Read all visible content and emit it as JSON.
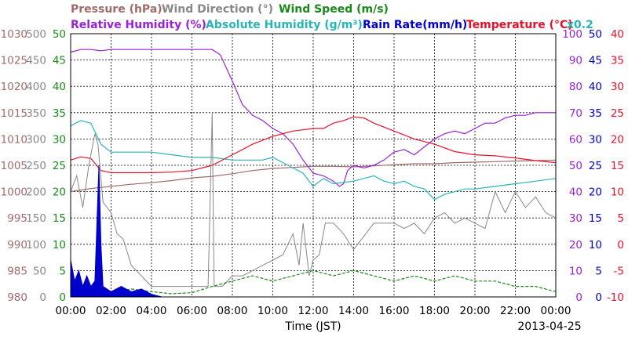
{
  "chart_data": {
    "type": "line",
    "date_label": "2013-04-25",
    "xlabel": "Time (JST)",
    "x_ticks": [
      "00:00",
      "02:00",
      "04:00",
      "06:00",
      "08:00",
      "10:00",
      "12:00",
      "14:00",
      "16:00",
      "18:00",
      "20:00",
      "22:00",
      "00:00"
    ],
    "x_range_hours": [
      0,
      24
    ],
    "grid": true,
    "multiplier_note": "x0.2",
    "legend": [
      {
        "key": "pressure",
        "text": "Pressure (hPa)",
        "color": "#a06b6b"
      },
      {
        "key": "wind_dir",
        "text": "Wind Direction (°)",
        "color": "#888888"
      },
      {
        "key": "wind_speed",
        "text": "Wind Speed (m/s)",
        "color": "#1a8a1a"
      },
      {
        "key": "rh",
        "text": "Relative Humidity (%)",
        "color": "#9a22d6"
      },
      {
        "key": "abs_h",
        "text": "Absolute Humidity (g/m³)",
        "color": "#2ab5b5"
      },
      {
        "key": "rain",
        "text": "Rain Rate(mm/h)",
        "color": "#0000cc"
      },
      {
        "key": "temp",
        "text": "Temperature (°C)",
        "color": "#e8102a"
      }
    ],
    "axes": {
      "pressure": {
        "ticks": [
          "980",
          "985",
          "990",
          "995",
          "1000",
          "1005",
          "1010",
          "1015",
          "1020",
          "1025",
          "1030"
        ],
        "range": [
          980,
          1030
        ],
        "color": "#a06b6b"
      },
      "wind_dir": {
        "ticks": [
          "0",
          "50",
          "100",
          "150",
          "200",
          "250",
          "300",
          "350",
          "400",
          "450",
          "500"
        ],
        "range": [
          0,
          500
        ],
        "color": "#888888"
      },
      "wind_speed": {
        "ticks": [
          "0",
          "5",
          "10",
          "15",
          "20",
          "25",
          "30",
          "35",
          "40",
          "45",
          "50"
        ],
        "range": [
          0,
          50
        ],
        "color": "#1a8a1a"
      },
      "rh": {
        "ticks": [
          "0",
          "10",
          "20",
          "30",
          "40",
          "50",
          "60",
          "70",
          "80",
          "90",
          "100"
        ],
        "range": [
          0,
          100
        ],
        "color": "#9a22d6"
      },
      "rain": {
        "ticks": [
          "0",
          "5",
          "10",
          "15",
          "20",
          "25",
          "30",
          "35",
          "40",
          "45",
          "50"
        ],
        "range": [
          0,
          50
        ],
        "color": "#0000cc"
      },
      "temp": {
        "ticks": [
          "-10",
          "-5",
          "0",
          "5",
          "10",
          "15",
          "20",
          "25",
          "30",
          "35",
          "40"
        ],
        "range": [
          -10,
          40
        ],
        "color": "#e8102a"
      }
    },
    "series": [
      {
        "name": "Pressure (hPa)",
        "key": "pressure",
        "points": [
          [
            0,
            1000
          ],
          [
            1,
            1000.6
          ],
          [
            2,
            1001
          ],
          [
            3,
            1001.4
          ],
          [
            4,
            1001.7
          ],
          [
            5,
            1002.1
          ],
          [
            6,
            1002.6
          ],
          [
            7,
            1002.9
          ],
          [
            8,
            1003.4
          ],
          [
            9,
            1004
          ],
          [
            10,
            1004.4
          ],
          [
            11,
            1004.6
          ],
          [
            12,
            1004.8
          ],
          [
            13,
            1004.8
          ],
          [
            14,
            1004.7
          ],
          [
            15,
            1004.9
          ],
          [
            16,
            1005.1
          ],
          [
            17,
            1005.3
          ],
          [
            18,
            1005.3
          ],
          [
            19,
            1005.5
          ],
          [
            20,
            1005.6
          ],
          [
            21,
            1005.7
          ],
          [
            22,
            1005.8
          ],
          [
            23,
            1005.9
          ],
          [
            24,
            1006
          ]
        ]
      },
      {
        "name": "Relative Humidity (%)",
        "key": "rh",
        "points": [
          [
            0,
            93
          ],
          [
            0.5,
            94
          ],
          [
            1,
            94
          ],
          [
            1.5,
            93.5
          ],
          [
            2,
            94
          ],
          [
            3,
            94
          ],
          [
            4,
            94
          ],
          [
            5,
            94
          ],
          [
            6,
            94
          ],
          [
            6.5,
            94
          ],
          [
            7,
            94
          ],
          [
            7.4,
            92
          ],
          [
            8,
            82
          ],
          [
            8.5,
            73
          ],
          [
            9,
            69
          ],
          [
            9.5,
            67
          ],
          [
            10,
            64
          ],
          [
            10.5,
            62
          ],
          [
            11,
            58
          ],
          [
            11.5,
            52
          ],
          [
            12,
            47
          ],
          [
            12.5,
            46
          ],
          [
            13,
            44
          ],
          [
            13.3,
            42
          ],
          [
            13.5,
            43
          ],
          [
            13.7,
            48
          ],
          [
            14,
            50
          ],
          [
            14.5,
            49
          ],
          [
            15,
            50
          ],
          [
            15.5,
            52
          ],
          [
            16,
            55
          ],
          [
            16.5,
            56
          ],
          [
            17,
            54
          ],
          [
            17.5,
            57
          ],
          [
            18,
            60
          ],
          [
            18.5,
            62
          ],
          [
            19,
            63
          ],
          [
            19.5,
            62
          ],
          [
            20,
            64
          ],
          [
            20.5,
            66
          ],
          [
            21,
            66
          ],
          [
            21.5,
            68
          ],
          [
            22,
            69
          ],
          [
            22.5,
            69
          ],
          [
            23,
            70
          ],
          [
            23.5,
            70
          ],
          [
            24,
            70
          ]
        ]
      },
      {
        "name": "Absolute Humidity (g/m³)",
        "key": "abs_h",
        "points": [
          [
            0,
            65
          ],
          [
            0.5,
            67
          ],
          [
            1,
            66
          ],
          [
            1.5,
            58
          ],
          [
            2,
            55
          ],
          [
            3,
            55
          ],
          [
            4,
            55
          ],
          [
            5,
            54
          ],
          [
            6,
            53
          ],
          [
            7,
            53
          ],
          [
            8,
            52
          ],
          [
            8.5,
            52
          ],
          [
            9,
            52
          ],
          [
            9.5,
            52
          ],
          [
            10,
            53
          ],
          [
            10.5,
            51
          ],
          [
            11,
            49
          ],
          [
            11.5,
            47
          ],
          [
            12,
            42
          ],
          [
            12.5,
            45
          ],
          [
            13,
            43
          ],
          [
            14,
            44
          ],
          [
            14.5,
            45
          ],
          [
            15,
            46
          ],
          [
            15.5,
            44
          ],
          [
            16,
            43
          ],
          [
            16.5,
            44
          ],
          [
            17,
            42
          ],
          [
            17.5,
            41
          ],
          [
            18,
            37
          ],
          [
            18.5,
            39
          ],
          [
            19,
            40
          ],
          [
            19.5,
            41
          ],
          [
            20,
            41
          ],
          [
            21,
            42
          ],
          [
            22,
            43
          ],
          [
            23,
            44
          ],
          [
            24,
            45
          ]
        ]
      },
      {
        "name": "Temperature (°C)",
        "key": "temp",
        "points": [
          [
            0,
            16
          ],
          [
            0.5,
            16.6
          ],
          [
            1,
            16.3
          ],
          [
            1.5,
            14
          ],
          [
            2,
            13.6
          ],
          [
            3,
            13.6
          ],
          [
            4,
            13.6
          ],
          [
            5,
            13.7
          ],
          [
            6,
            14
          ],
          [
            7,
            15
          ],
          [
            8,
            17
          ],
          [
            9,
            19
          ],
          [
            10,
            20.5
          ],
          [
            11,
            21.5
          ],
          [
            12,
            22
          ],
          [
            12.5,
            22
          ],
          [
            13,
            23
          ],
          [
            13.5,
            23.5
          ],
          [
            14,
            24.2
          ],
          [
            14.5,
            24
          ],
          [
            15,
            23
          ],
          [
            16,
            21.5
          ],
          [
            17,
            20
          ],
          [
            18,
            19
          ],
          [
            19,
            17.6
          ],
          [
            20,
            17
          ],
          [
            21,
            16.8
          ],
          [
            22,
            16.4
          ],
          [
            23,
            15.9
          ],
          [
            24,
            15.5
          ]
        ]
      },
      {
        "name": "Wind Direction (°)",
        "key": "wind_dir",
        "points": [
          [
            0,
            200
          ],
          [
            0.3,
            230
          ],
          [
            0.6,
            170
          ],
          [
            0.9,
            250
          ],
          [
            1.2,
            310
          ],
          [
            1.35,
            290
          ],
          [
            1.6,
            180
          ],
          [
            2.0,
            160
          ],
          [
            2.3,
            120
          ],
          [
            2.6,
            110
          ],
          [
            3,
            60
          ],
          [
            3.5,
            40
          ],
          [
            4,
            20
          ],
          [
            5,
            20
          ],
          [
            6,
            20
          ],
          [
            6.8,
            20
          ],
          [
            7.0,
            350
          ],
          [
            7.1,
            20
          ],
          [
            7.5,
            20
          ],
          [
            8,
            40
          ],
          [
            8.5,
            40
          ],
          [
            9,
            50
          ],
          [
            9.5,
            60
          ],
          [
            10,
            70
          ],
          [
            10.5,
            80
          ],
          [
            11,
            120
          ],
          [
            11.3,
            60
          ],
          [
            11.5,
            140
          ],
          [
            11.8,
            40
          ],
          [
            12,
            70
          ],
          [
            12.3,
            80
          ],
          [
            12.6,
            140
          ],
          [
            13,
            140
          ],
          [
            13.5,
            120
          ],
          [
            14,
            90
          ],
          [
            15,
            140
          ],
          [
            16,
            140
          ],
          [
            16.5,
            130
          ],
          [
            17,
            140
          ],
          [
            17.5,
            120
          ],
          [
            18,
            150
          ],
          [
            18.5,
            160
          ],
          [
            19,
            140
          ],
          [
            19.5,
            150
          ],
          [
            20,
            140
          ],
          [
            20.5,
            130
          ],
          [
            21,
            200
          ],
          [
            21.5,
            160
          ],
          [
            22,
            200
          ],
          [
            22.5,
            170
          ],
          [
            23,
            190
          ],
          [
            23.5,
            160
          ],
          [
            24,
            150
          ]
        ]
      },
      {
        "name": "Wind Speed (m/s)",
        "key": "wind_speed",
        "points": [
          [
            0,
            0.5
          ],
          [
            1,
            1.2
          ],
          [
            2,
            0.8
          ],
          [
            3,
            1.5
          ],
          [
            4,
            1.0
          ],
          [
            5,
            0.6
          ],
          [
            6,
            0.8
          ],
          [
            7,
            2
          ],
          [
            8,
            3
          ],
          [
            9,
            4
          ],
          [
            10,
            3
          ],
          [
            11,
            4
          ],
          [
            12,
            5
          ],
          [
            13,
            4
          ],
          [
            14,
            5
          ],
          [
            15,
            4
          ],
          [
            16,
            3
          ],
          [
            17,
            4
          ],
          [
            18,
            3
          ],
          [
            19,
            4
          ],
          [
            20,
            3
          ],
          [
            21,
            3
          ],
          [
            22,
            2
          ],
          [
            23,
            2
          ],
          [
            24,
            1
          ]
        ]
      },
      {
        "name": "Rain Rate(mm/h)",
        "key": "rain",
        "points": [
          [
            0,
            7
          ],
          [
            0.2,
            3
          ],
          [
            0.4,
            5
          ],
          [
            0.6,
            2
          ],
          [
            0.8,
            4
          ],
          [
            1.0,
            2
          ],
          [
            1.2,
            3
          ],
          [
            1.4,
            25
          ],
          [
            1.5,
            10
          ],
          [
            1.6,
            2
          ],
          [
            2.0,
            1
          ],
          [
            2.5,
            2
          ],
          [
            3.0,
            1
          ],
          [
            3.5,
            1.5
          ],
          [
            4,
            0.5
          ],
          [
            4.5,
            0
          ],
          [
            24,
            0
          ]
        ]
      }
    ]
  }
}
